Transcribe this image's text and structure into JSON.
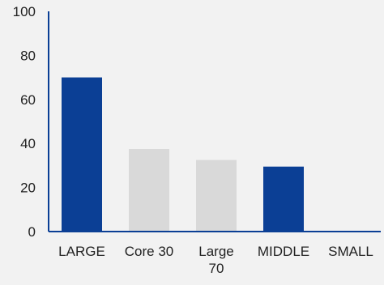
{
  "chart_data": {
    "type": "bar",
    "title": "",
    "xlabel": "",
    "ylabel": "",
    "categories": [
      [
        "LARGE"
      ],
      [
        "Core 30"
      ],
      [
        "Large",
        "70"
      ],
      [
        "MIDDLE"
      ],
      [
        "SMALL"
      ]
    ],
    "values": [
      70,
      37.5,
      32.5,
      29.5,
      0
    ],
    "bar_colors": [
      "#0b3f95",
      "#d9d9d9",
      "#d9d9d9",
      "#0b3f95",
      "#0b3f95"
    ],
    "ylim": [
      0,
      100
    ],
    "yticks": [
      "0",
      "20",
      "40",
      "60",
      "80",
      "100"
    ],
    "grid": false,
    "legend": "none",
    "axis_color": "#0b3f95",
    "background": "#f2f2f2"
  }
}
